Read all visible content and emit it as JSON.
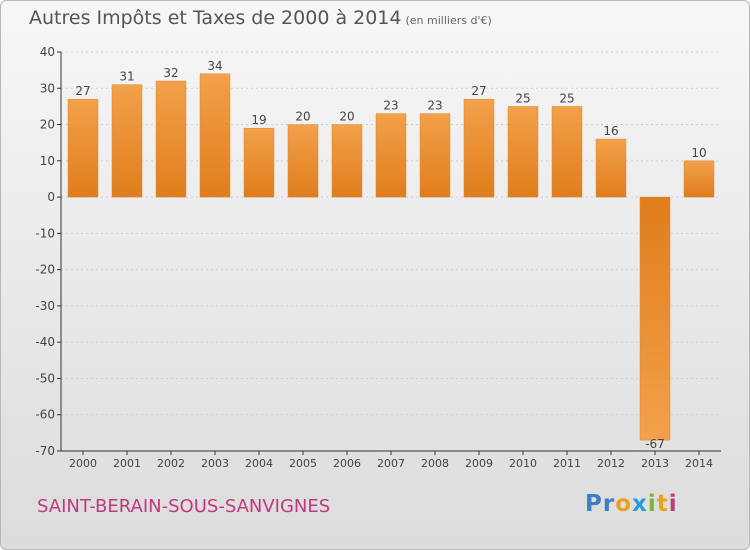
{
  "title": "Autres Impôts et Taxes de 2000 à 2014",
  "unit_note": "(en milliers d'€)",
  "commune": "SAINT-BERAIN-SOUS-SANVIGNES",
  "logo": {
    "letters": [
      "P",
      "r",
      "o",
      "x",
      "i",
      "t",
      "i"
    ],
    "colors": [
      "#3a7fc1",
      "#3a7fc1",
      "#e8a21b",
      "#2c9ad6",
      "#7ab833",
      "#e8a21b",
      "#c0397f"
    ]
  },
  "colors": {
    "bar_top": "#f2a14a",
    "bar_bottom": "#e07d1c",
    "label": "#444444",
    "axis": "#333333",
    "grid": "#cfcfcf"
  },
  "chart_data": {
    "type": "bar",
    "categories": [
      "2000",
      "2001",
      "2002",
      "2003",
      "2004",
      "2005",
      "2006",
      "2007",
      "2008",
      "2009",
      "2010",
      "2011",
      "2012",
      "2013",
      "2014"
    ],
    "values": [
      27,
      31,
      32,
      34,
      19,
      20,
      20,
      23,
      23,
      27,
      25,
      25,
      16,
      -67,
      10
    ],
    "data_labels": [
      "27",
      "31",
      "32",
      "34",
      "19",
      "20",
      "20",
      "23",
      "23",
      "27",
      "25",
      "25",
      "16",
      "-67",
      "10"
    ],
    "ylim": [
      -70,
      40
    ],
    "yticks": [
      40,
      30,
      20,
      10,
      0,
      -10,
      -20,
      -30,
      -40,
      -50,
      -60,
      -70
    ],
    "ytick_labels": [
      "40",
      "30",
      "20",
      "10",
      "0",
      "-10",
      "-20",
      "-30",
      "-40",
      "-50",
      "-60",
      "-70"
    ],
    "grid": true,
    "title": "Autres Impôts et Taxes de 2000 à 2014",
    "xlabel": "",
    "ylabel": ""
  }
}
